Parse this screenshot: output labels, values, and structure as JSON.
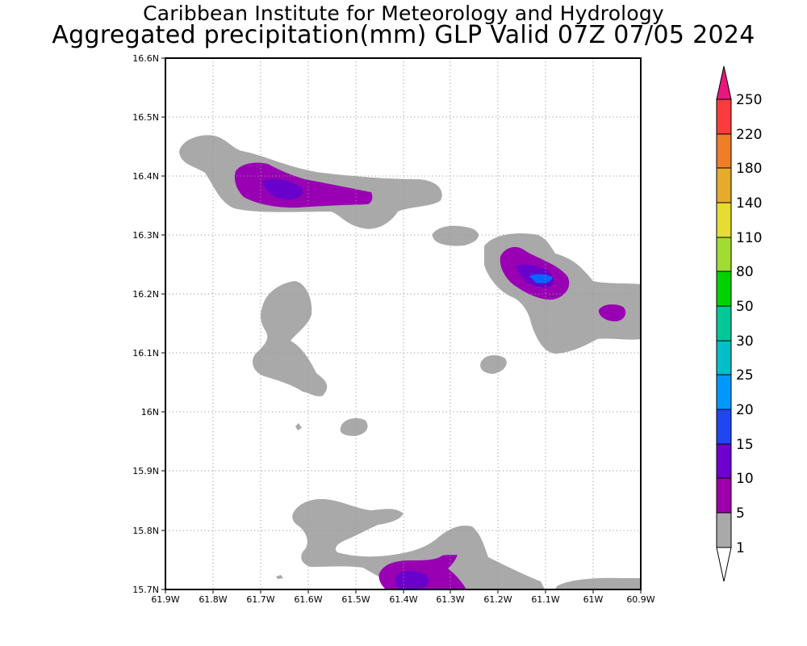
{
  "header": {
    "institute": "Caribbean Institute for Meteorology and Hydrology",
    "product": "Aggregated precipitation(mm) GLP Valid 07Z 07/05 2024"
  },
  "map": {
    "lon_ticks": [
      "61.9W",
      "61.8W",
      "61.7W",
      "61.6W",
      "61.5W",
      "61.4W",
      "61.3W",
      "61.2W",
      "61.1W",
      "61W",
      "60.9W"
    ],
    "lat_ticks": [
      "16.6N",
      "16.5N",
      "16.4N",
      "16.3N",
      "16.2N",
      "16.1N",
      "16N",
      "15.9N",
      "15.8N",
      "15.7N"
    ],
    "grid": true,
    "precip_level_colors": {
      "1": "#a9a9a9",
      "5": "#9900b3",
      "10": "#6a00cc",
      "20": "#0066ff"
    }
  },
  "colorbar": {
    "labels": [
      "1",
      "5",
      "10",
      "15",
      "20",
      "25",
      "30",
      "50",
      "80",
      "110",
      "140",
      "180",
      "220",
      "250"
    ],
    "colors": [
      "#ffffff",
      "#a9a9a9",
      "#9e00ab",
      "#7000d0",
      "#2046f0",
      "#0098ff",
      "#00bfc8",
      "#00c896",
      "#00d200",
      "#a0dc32",
      "#e6dc32",
      "#e6aa2d",
      "#f07d28",
      "#fa3c3c",
      "#e6187d"
    ]
  }
}
